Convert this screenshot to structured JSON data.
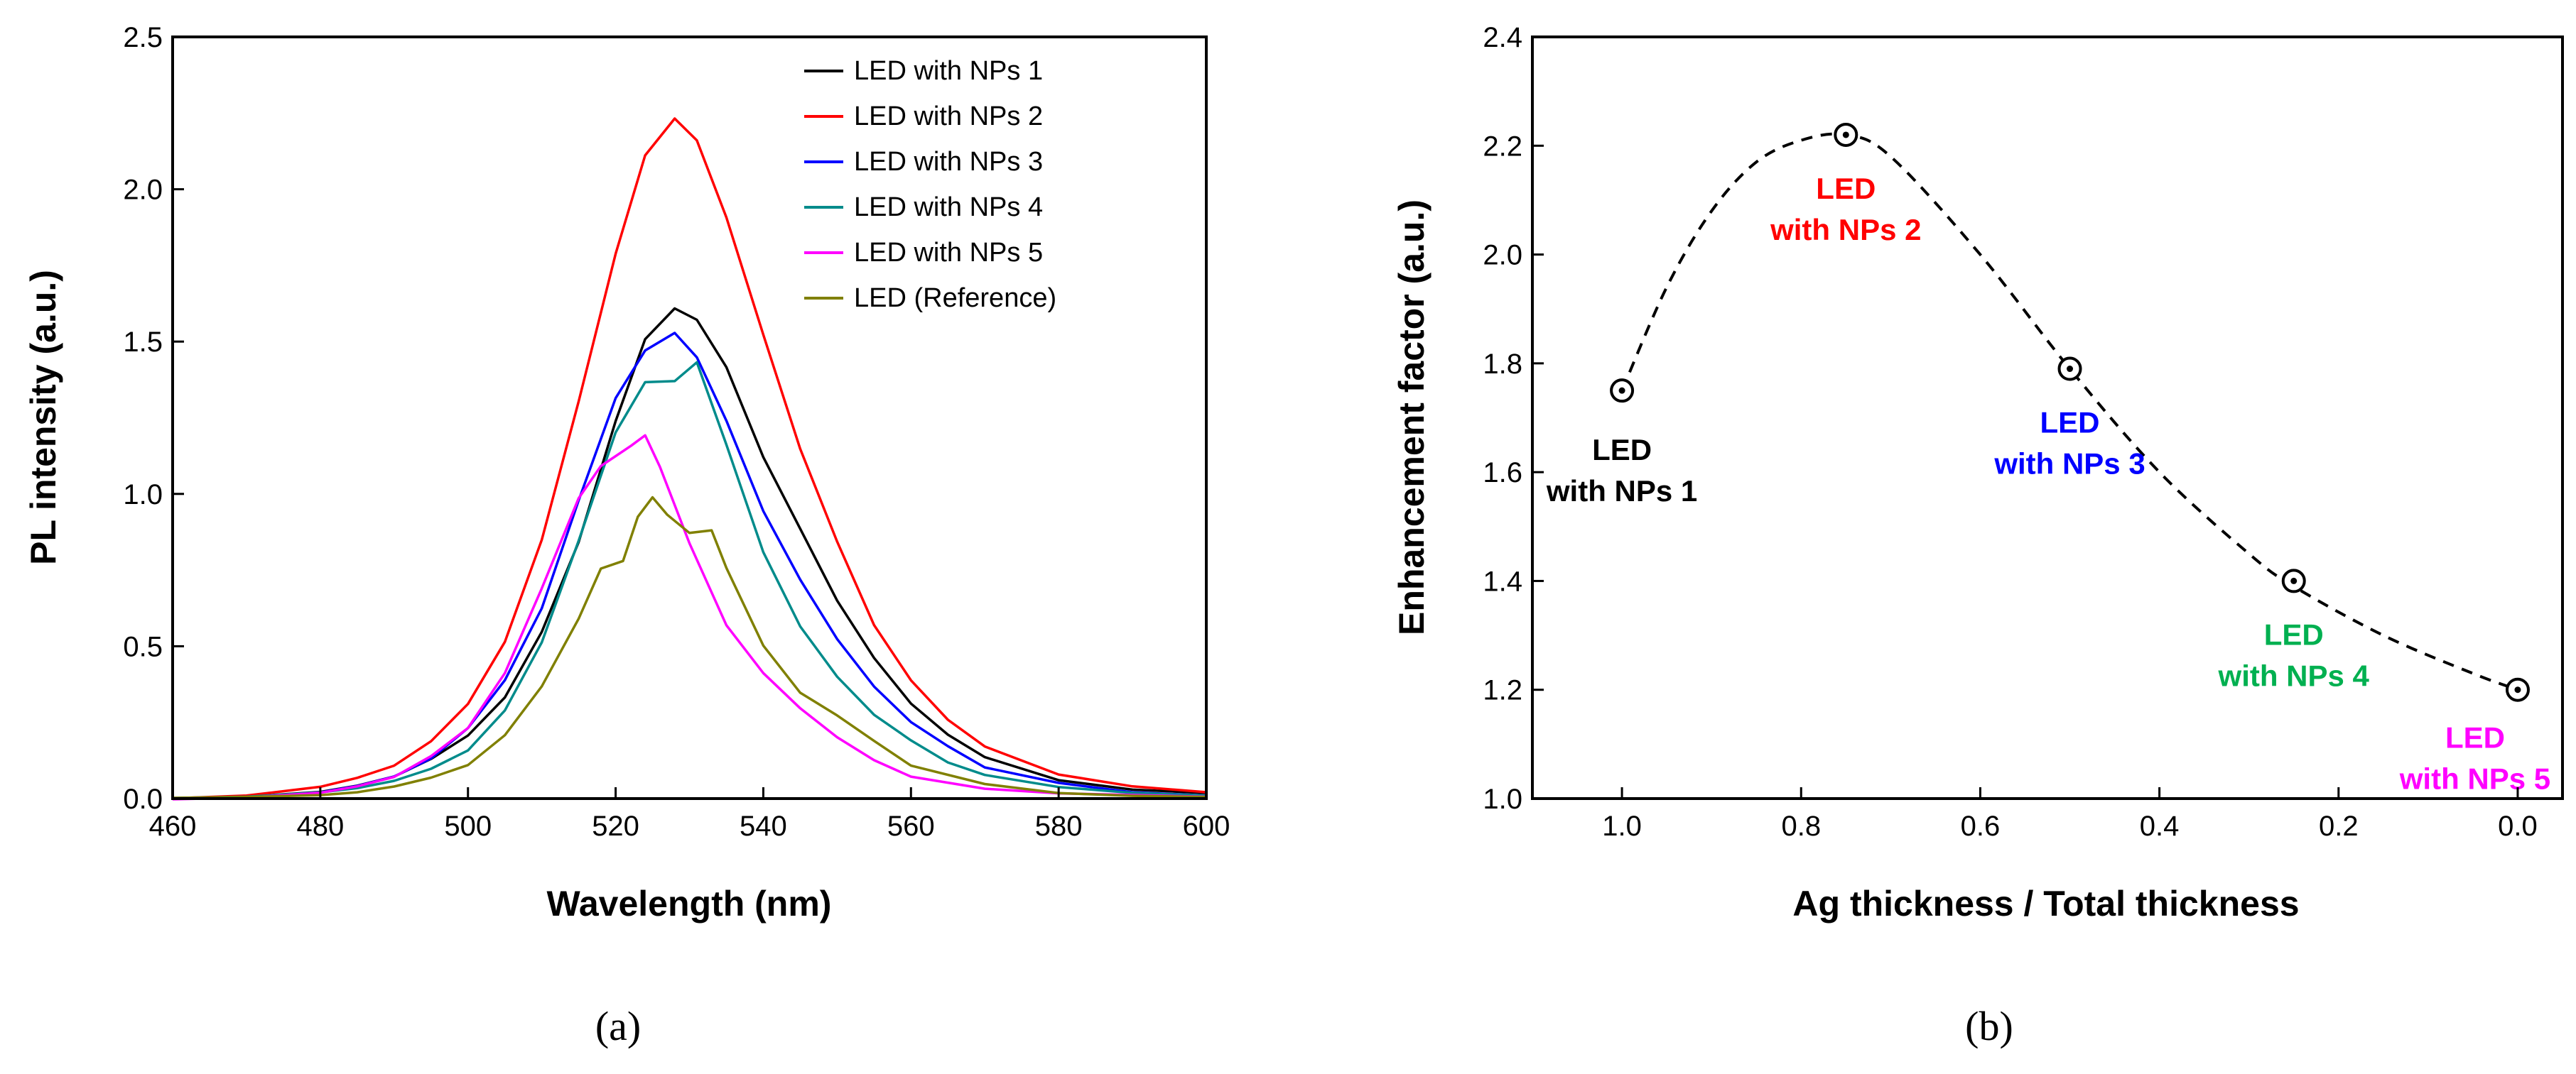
{
  "chart_data": [
    {
      "type": "line",
      "panel_label": "(a)",
      "title": "",
      "xlabel": "Wavelength (nm)",
      "ylabel": "PL intensity (a.u.)",
      "xlim": [
        460,
        600
      ],
      "ylim": [
        0,
        2.5
      ],
      "xticks": [
        460,
        480,
        500,
        520,
        540,
        560,
        580,
        600
      ],
      "yticks": [
        0.0,
        0.5,
        1.0,
        1.5,
        2.0,
        2.5
      ],
      "xtick_labels": [
        "460",
        "480",
        "500",
        "520",
        "540",
        "560",
        "580",
        "600"
      ],
      "ytick_labels": [
        "0.0",
        "0.5",
        "1.0",
        "1.5",
        "2.0",
        "2.5"
      ],
      "legend_position": "top-right",
      "series": [
        {
          "name": "LED with NPs 1",
          "color": "#000000",
          "x": [
            460,
            470,
            480,
            485,
            490,
            495,
            500,
            505,
            510,
            515,
            520,
            524,
            528,
            531,
            535,
            540,
            545,
            550,
            555,
            560,
            565,
            570,
            580,
            590,
            600
          ],
          "y": [
            0.0,
            0.005,
            0.02,
            0.04,
            0.07,
            0.12,
            0.2,
            0.33,
            0.55,
            0.85,
            1.25,
            1.52,
            1.62,
            1.58,
            1.42,
            1.12,
            0.88,
            0.64,
            0.45,
            0.3,
            0.2,
            0.13,
            0.06,
            0.03,
            0.02
          ]
        },
        {
          "name": "LED with NPs 2",
          "color": "#ff0000",
          "x": [
            460,
            470,
            480,
            485,
            490,
            495,
            500,
            505,
            510,
            515,
            520,
            524,
            528,
            531,
            535,
            540,
            545,
            550,
            555,
            560,
            565,
            570,
            580,
            590,
            600
          ],
          "y": [
            0.0,
            0.01,
            0.04,
            0.07,
            0.12,
            0.2,
            0.32,
            0.52,
            0.85,
            1.3,
            1.78,
            2.1,
            2.22,
            2.15,
            1.9,
            1.52,
            1.15,
            0.85,
            0.58,
            0.4,
            0.27,
            0.18,
            0.08,
            0.04,
            0.02
          ]
        },
        {
          "name": "LED with NPs 3",
          "color": "#0000ff",
          "x": [
            460,
            470,
            480,
            485,
            490,
            495,
            500,
            505,
            510,
            515,
            520,
            524,
            528,
            531,
            535,
            540,
            545,
            550,
            555,
            560,
            565,
            570,
            580,
            590,
            600
          ],
          "y": [
            0.0,
            0.005,
            0.02,
            0.04,
            0.07,
            0.12,
            0.22,
            0.38,
            0.62,
            0.98,
            1.32,
            1.48,
            1.54,
            1.46,
            1.25,
            0.95,
            0.72,
            0.52,
            0.36,
            0.24,
            0.16,
            0.1,
            0.05,
            0.02,
            0.01
          ]
        },
        {
          "name": "LED with NPs 4",
          "color": "#008b8b",
          "x": [
            460,
            470,
            480,
            485,
            490,
            495,
            500,
            505,
            510,
            515,
            520,
            524,
            528,
            531,
            535,
            540,
            545,
            550,
            555,
            560,
            565,
            570,
            580,
            590,
            600
          ],
          "y": [
            0.0,
            0.005,
            0.02,
            0.035,
            0.06,
            0.1,
            0.17,
            0.3,
            0.52,
            0.85,
            1.2,
            1.36,
            1.36,
            1.42,
            1.15,
            0.8,
            0.56,
            0.4,
            0.28,
            0.2,
            0.13,
            0.08,
            0.04,
            0.02,
            0.01
          ]
        },
        {
          "name": "LED with NPs 5",
          "color": "#ff00ff",
          "x": [
            460,
            470,
            480,
            485,
            490,
            495,
            500,
            505,
            510,
            515,
            518,
            522,
            524,
            526,
            530,
            535,
            540,
            545,
            550,
            555,
            560,
            570,
            580,
            590,
            600
          ],
          "y": [
            0.0,
            0.005,
            0.02,
            0.04,
            0.07,
            0.13,
            0.22,
            0.4,
            0.68,
            0.98,
            1.09,
            1.16,
            1.2,
            1.1,
            0.85,
            0.58,
            0.42,
            0.3,
            0.2,
            0.12,
            0.07,
            0.03,
            0.015,
            0.01,
            0.005
          ]
        },
        {
          "name": "LED (Reference)",
          "color": "#808000",
          "x": [
            460,
            470,
            480,
            485,
            490,
            495,
            500,
            505,
            510,
            515,
            518,
            521,
            523,
            525,
            527,
            530,
            533,
            535,
            540,
            545,
            550,
            555,
            560,
            570,
            580,
            590,
            600
          ],
          "y": [
            0.0,
            0.003,
            0.01,
            0.02,
            0.04,
            0.07,
            0.12,
            0.22,
            0.38,
            0.6,
            0.76,
            0.78,
            0.92,
            0.98,
            0.92,
            0.86,
            0.87,
            0.75,
            0.5,
            0.35,
            0.28,
            0.2,
            0.12,
            0.05,
            0.02,
            0.01,
            0.005
          ]
        }
      ]
    },
    {
      "type": "scatter",
      "panel_label": "(b)",
      "title": "",
      "xlabel": "Ag thickness / Total thickness",
      "ylabel": "Enhancement factor (a.u.)",
      "xlim": [
        1.1,
        -0.05
      ],
      "ylim": [
        1.0,
        2.4
      ],
      "x_reversed": true,
      "xticks": [
        1.0,
        0.8,
        0.6,
        0.4,
        0.2,
        0.0
      ],
      "yticks": [
        1.0,
        1.2,
        1.4,
        1.6,
        1.8,
        2.0,
        2.2,
        2.4
      ],
      "xtick_labels": [
        "1.0",
        "0.8",
        "0.6",
        "0.4",
        "0.2",
        "0.0"
      ],
      "ytick_labels": [
        "1.0",
        "1.2",
        "1.4",
        "1.6",
        "1.8",
        "2.0",
        "2.2",
        "2.4"
      ],
      "trend_line": "dashed",
      "points": [
        {
          "x": 1.0,
          "y": 1.75,
          "label_line1": "LED",
          "label_line2": "with NPs 1",
          "color": "#000000"
        },
        {
          "x": 0.75,
          "y": 2.22,
          "label_line1": "LED",
          "label_line2": "with NPs 2",
          "color": "#ff0000"
        },
        {
          "x": 0.5,
          "y": 1.79,
          "label_line1": "LED",
          "label_line2": "with NPs 3",
          "color": "#0000ff"
        },
        {
          "x": 0.25,
          "y": 1.4,
          "label_line1": "LED",
          "label_line2": "with NPs 4",
          "color": "#00b050"
        },
        {
          "x": 0.0,
          "y": 1.2,
          "label_line1": "LED",
          "label_line2": "with NPs 5",
          "color": "#ff00ff"
        }
      ],
      "trend_curve": {
        "x": [
          1.0,
          0.95,
          0.9,
          0.85,
          0.8,
          0.75,
          0.7,
          0.6,
          0.5,
          0.4,
          0.3,
          0.25,
          0.15,
          0.05,
          0.0
        ],
        "y": [
          1.75,
          1.94,
          2.08,
          2.17,
          2.21,
          2.22,
          2.18,
          2.0,
          1.79,
          1.6,
          1.45,
          1.39,
          1.3,
          1.23,
          1.2
        ]
      }
    }
  ]
}
